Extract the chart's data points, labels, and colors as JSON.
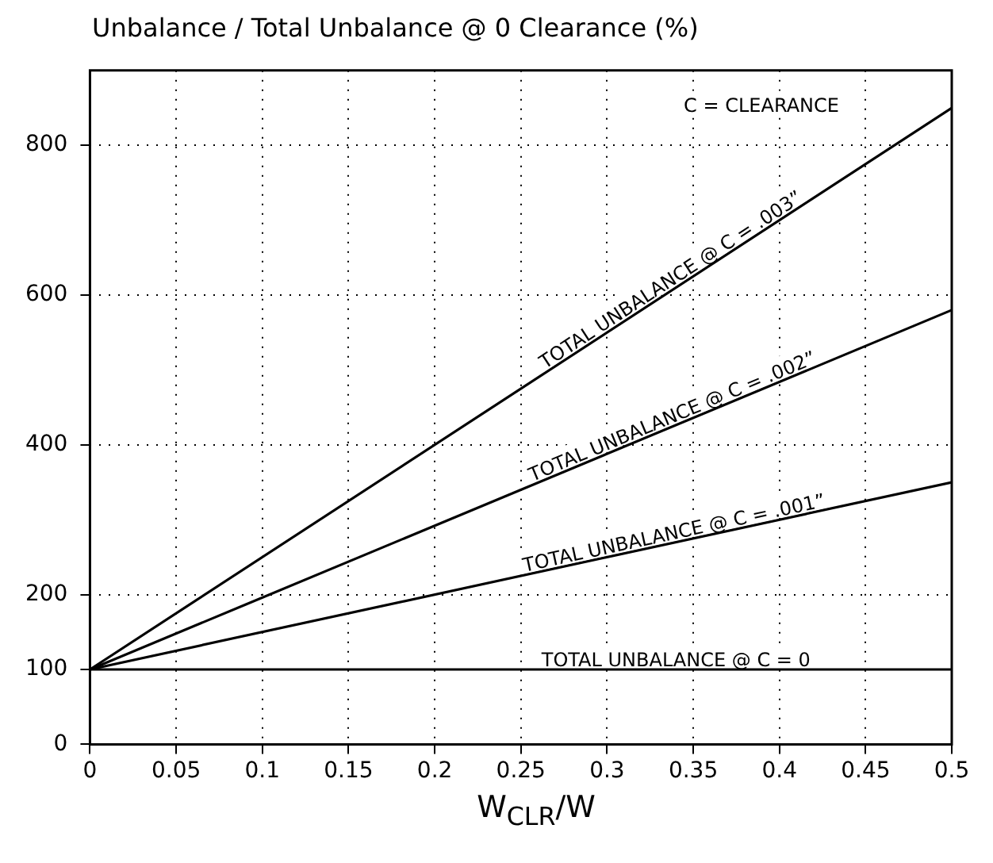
{
  "chart_data": {
    "type": "line",
    "title": "Unbalance / Total Unbalance @ 0 Clearance (%)",
    "xlabel": "W$_{CLR}$/W",
    "x": [
      0,
      0.5
    ],
    "series": [
      {
        "name": "TOTAL UNBALANCE @ C = .003”",
        "color": "#000000",
        "values": [
          100,
          850
        ]
      },
      {
        "name": "TOTAL UNBALANCE @ C = .002”",
        "color": "#000000",
        "values": [
          100,
          580
        ]
      },
      {
        "name": "TOTAL UNBALANCE @ C = .001”",
        "color": "#000000",
        "values": [
          100,
          350
        ]
      },
      {
        "name": "TOTAL UNBALANCE @ C = 0",
        "color": "#000000",
        "values": [
          100,
          100
        ]
      }
    ],
    "annotations": [
      "C = CLEARANCE"
    ],
    "xlim": [
      0,
      0.5
    ],
    "xticks": [
      0,
      0.05,
      0.1,
      0.15,
      0.2,
      0.25,
      0.3,
      0.35,
      0.4,
      0.45,
      0.5
    ],
    "ylim": [
      0,
      900
    ],
    "yticks": [
      0,
      100,
      200,
      400,
      600,
      800
    ],
    "grid": true,
    "legend": false,
    "marker": "none",
    "line_style": "solid"
  }
}
